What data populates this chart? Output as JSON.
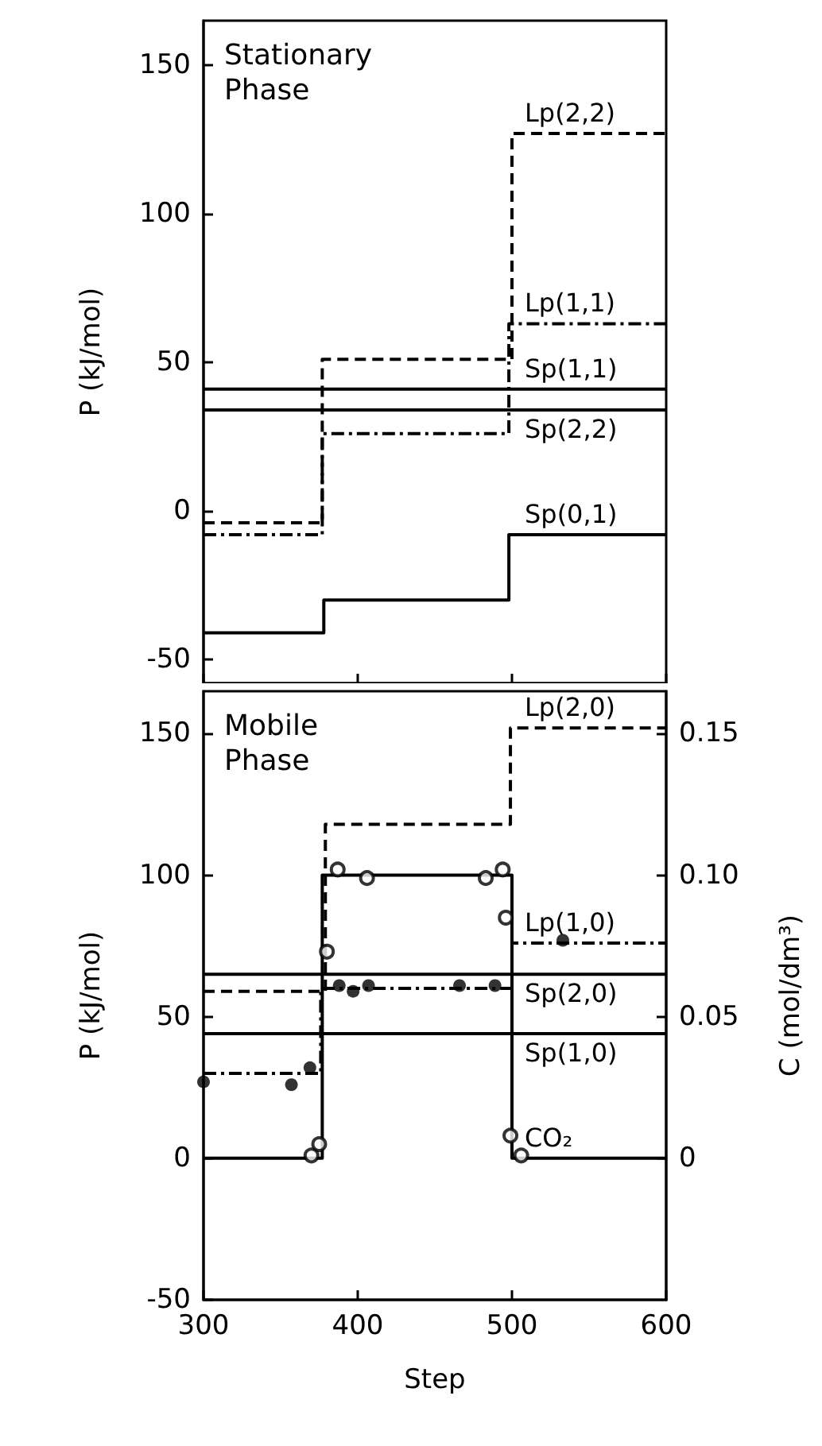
{
  "chart_data": [
    {
      "type": "step",
      "title": "Stationary Phase",
      "ylabel": "P (kJ/mol)",
      "xlim": [
        300,
        600
      ],
      "xticks": [
        300,
        400,
        500,
        600
      ],
      "ylim": [
        -58,
        165
      ],
      "yticks": [
        -50,
        0,
        50,
        100,
        150
      ],
      "tick_labels": "y",
      "grid": false,
      "marker": "none",
      "series": [
        {
          "name": "Lp(2,2)",
          "color": "#000000",
          "line_style": "dashed",
          "x": [
            300,
            377,
            500,
            600
          ],
          "values": [
            -4,
            51,
            127,
            127
          ]
        },
        {
          "name": "Lp(1,1)",
          "color": "#000000",
          "line_style": "dashdot",
          "x": [
            300,
            377,
            498,
            600
          ],
          "values": [
            -8,
            26,
            63,
            63
          ]
        },
        {
          "name": "Sp(1,1)",
          "color": "#000000",
          "line_style": "solid",
          "x": [
            300,
            600
          ],
          "values": [
            41,
            41
          ]
        },
        {
          "name": "Sp(2,2)",
          "color": "#000000",
          "line_style": "solid",
          "x": [
            300,
            600
          ],
          "values": [
            34,
            34
          ]
        },
        {
          "name": "Sp(0,1)",
          "color": "#000000",
          "line_style": "solid",
          "x": [
            300,
            378,
            498,
            600
          ],
          "values": [
            -41,
            -30,
            -8,
            -8
          ]
        }
      ]
    },
    {
      "type": "step",
      "title": "Mobile Phase",
      "xlabel": "Step",
      "ylabel": "P (kJ/mol)",
      "y2label": "C (mol/dm³)",
      "xlim": [
        300,
        600
      ],
      "xticks": [
        300,
        400,
        500,
        600
      ],
      "ylim": [
        -50,
        165
      ],
      "yticks": [
        -50,
        0,
        50,
        100,
        150
      ],
      "y2lim": [
        -0.05,
        0.165
      ],
      "y2ticks": [
        0,
        0.05,
        {
          "value": 0.1,
          "label": "0.10"
        },
        0.15
      ],
      "grid": false,
      "marker": "none",
      "series": [
        {
          "name": "Lp(2,0)",
          "color": "#000000",
          "line_style": "dashed",
          "x": [
            300,
            379,
            499,
            600
          ],
          "values": [
            59,
            118,
            152,
            152
          ]
        },
        {
          "name": "Lp(1,0)",
          "color": "#000000",
          "line_style": "dashdot",
          "x": [
            300,
            376,
            500,
            600
          ],
          "values": [
            30,
            60,
            76,
            76
          ]
        },
        {
          "name": "Sp(2,0)",
          "color": "#000000",
          "line_style": "solid",
          "x": [
            300,
            600
          ],
          "values": [
            65,
            65
          ]
        },
        {
          "name": "Sp(1,0)",
          "color": "#000000",
          "line_style": "solid",
          "x": [
            300,
            600
          ],
          "values": [
            44,
            44
          ]
        },
        {
          "name": "CO₂",
          "color": "#000000",
          "line_style": "solid",
          "axis": "y2",
          "x": [
            300,
            377,
            500,
            600
          ],
          "values": [
            0,
            0.1,
            0,
            0
          ]
        },
        {
          "type": "scatter",
          "color": "#000000",
          "marker": "circle",
          "x": [
            300,
            357,
            369,
            388,
            397,
            407,
            466,
            489,
            533
          ],
          "values": [
            27,
            26,
            32,
            61,
            59,
            61,
            61,
            61,
            77
          ]
        },
        {
          "type": "scatter",
          "color": "#000000",
          "marker": "circle-open",
          "axis": "y2",
          "x": [
            370,
            375,
            380,
            387,
            406,
            483,
            494,
            496,
            499,
            506
          ],
          "values": [
            0.001,
            0.005,
            0.073,
            0.102,
            0.099,
            0.099,
            0.102,
            0.085,
            0.008,
            0.001
          ]
        }
      ]
    }
  ]
}
